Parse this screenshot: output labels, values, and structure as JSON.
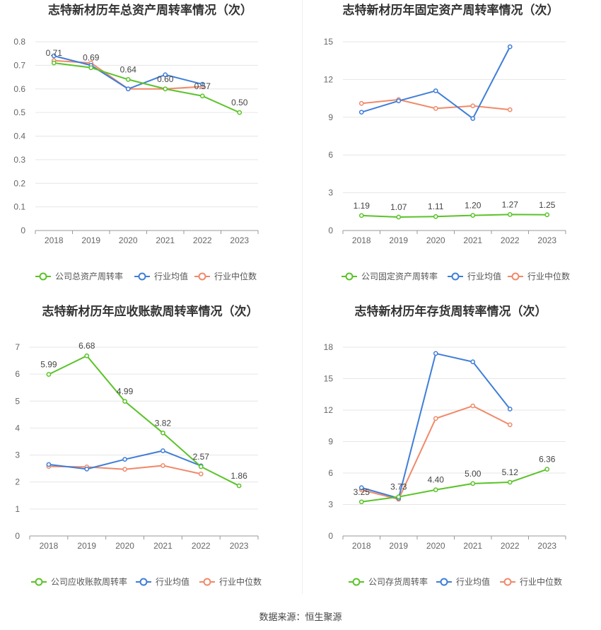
{
  "source": "数据来源：恒生聚源",
  "colors": {
    "company": "#5ac328",
    "avg": "#3f7ed8",
    "median": "#f1896a",
    "grid": "#e6e6e6",
    "axis": "#999999"
  },
  "chart_data": [
    {
      "type": "line",
      "title": "志特新材历年总资产周转率情况（次）",
      "categories": [
        "2018",
        "2019",
        "2020",
        "2021",
        "2022",
        "2023"
      ],
      "ylim": [
        0,
        0.8
      ],
      "yticks": [
        "0",
        "0.1",
        "0.2",
        "0.3",
        "0.4",
        "0.5",
        "0.6",
        "0.7",
        "0.8"
      ],
      "series": [
        {
          "name": "公司总资产周转率",
          "values": [
            0.71,
            0.69,
            0.64,
            0.6,
            0.57,
            0.5
          ],
          "labels": [
            "0.71",
            "0.69",
            "0.64",
            "0.60",
            "0.57",
            "0.50"
          ]
        },
        {
          "name": "行业均值",
          "values": [
            0.74,
            0.7,
            0.6,
            0.66,
            0.62,
            null
          ]
        },
        {
          "name": "行业中位数",
          "values": [
            0.72,
            0.71,
            0.6,
            0.6,
            0.61,
            null
          ]
        }
      ],
      "legend": "bottom"
    },
    {
      "type": "line",
      "title": "志特新材历年固定资产周转率情况（次）",
      "categories": [
        "2018",
        "2019",
        "2020",
        "2021",
        "2022",
        "2023"
      ],
      "ylim": [
        0,
        15
      ],
      "yticks": [
        "0",
        "3",
        "6",
        "9",
        "12",
        "15"
      ],
      "series": [
        {
          "name": "公司固定资产周转率",
          "values": [
            1.19,
            1.07,
            1.11,
            1.2,
            1.27,
            1.25
          ],
          "labels": [
            "1.19",
            "1.07",
            "1.11",
            "1.20",
            "1.27",
            "1.25"
          ]
        },
        {
          "name": "行业均值",
          "values": [
            9.4,
            10.3,
            11.1,
            8.9,
            14.6,
            null
          ]
        },
        {
          "name": "行业中位数",
          "values": [
            10.1,
            10.4,
            9.7,
            9.9,
            9.6,
            null
          ]
        }
      ],
      "legend": "bottom"
    },
    {
      "type": "line",
      "title": "志特新材历年应收账款周转率情况（次）",
      "categories": [
        "2018",
        "2019",
        "2020",
        "2021",
        "2022",
        "2023"
      ],
      "ylim": [
        0,
        7
      ],
      "yticks": [
        "0",
        "1",
        "2",
        "3",
        "4",
        "5",
        "6",
        "7"
      ],
      "series": [
        {
          "name": "公司应收账款周转率",
          "values": [
            5.99,
            6.68,
            4.99,
            3.82,
            2.57,
            1.86
          ],
          "labels": [
            "5.99",
            "6.68",
            "4.99",
            "3.82",
            "2.57",
            "1.86"
          ]
        },
        {
          "name": "行业均值",
          "values": [
            2.65,
            2.48,
            2.84,
            3.16,
            2.6,
            null
          ]
        },
        {
          "name": "行业中位数",
          "values": [
            2.58,
            2.56,
            2.47,
            2.61,
            2.3,
            null
          ]
        }
      ],
      "legend": "bottom"
    },
    {
      "type": "line",
      "title": "志特新材历年存货周转率情况（次）",
      "categories": [
        "2018",
        "2019",
        "2020",
        "2021",
        "2022",
        "2023"
      ],
      "ylim": [
        0,
        18
      ],
      "yticks": [
        "0",
        "3",
        "6",
        "9",
        "12",
        "15",
        "18"
      ],
      "series": [
        {
          "name": "公司存货周转率",
          "values": [
            3.25,
            3.73,
            4.4,
            5.0,
            5.12,
            6.36
          ],
          "labels": [
            "3.25",
            "3.73",
            "4.40",
            "5.00",
            "5.12",
            "6.36"
          ]
        },
        {
          "name": "行业均值",
          "values": [
            4.6,
            3.6,
            17.4,
            16.6,
            12.1,
            null
          ]
        },
        {
          "name": "行业中位数",
          "values": [
            4.4,
            3.5,
            11.2,
            12.4,
            10.6,
            null
          ]
        }
      ],
      "legend": "bottom"
    }
  ]
}
